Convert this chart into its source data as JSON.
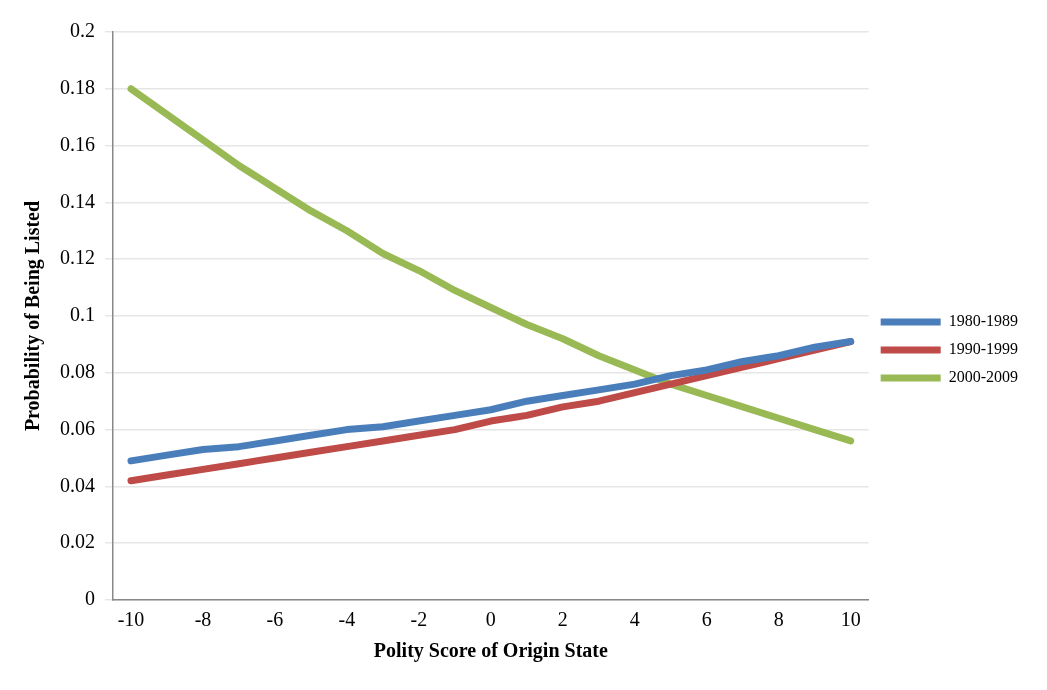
{
  "chart_data": {
    "type": "line",
    "xlabel": "Polity Score of Origin State",
    "ylabel": "Probability of Being Listed",
    "x": [
      -10,
      -9,
      -8,
      -7,
      -6,
      -5,
      -4,
      -3,
      -2,
      -1,
      0,
      1,
      2,
      3,
      4,
      5,
      6,
      7,
      8,
      9,
      10
    ],
    "xlim": [
      -10.5,
      10.5
    ],
    "xticks": [
      -10,
      -8,
      -6,
      -4,
      -2,
      0,
      2,
      4,
      6,
      8,
      10
    ],
    "ylim": [
      0,
      0.2
    ],
    "yticks": [
      0,
      0.02,
      0.04,
      0.06,
      0.08,
      0.1,
      0.12,
      0.14,
      0.16,
      0.18,
      0.2
    ],
    "grid": "y",
    "legend": "right",
    "marker": "none",
    "line_style": "solid",
    "series": [
      {
        "name": "1980-1989",
        "color": "#4a7ebb",
        "values": [
          0.049,
          0.051,
          0.053,
          0.054,
          0.056,
          0.058,
          0.06,
          0.061,
          0.063,
          0.065,
          0.067,
          0.07,
          0.072,
          0.074,
          0.076,
          0.079,
          0.081,
          0.084,
          0.086,
          0.089,
          0.091
        ]
      },
      {
        "name": "1990-1999",
        "color": "#be4b48",
        "values": [
          0.042,
          0.044,
          0.046,
          0.048,
          0.05,
          0.052,
          0.054,
          0.056,
          0.058,
          0.06,
          0.063,
          0.065,
          0.068,
          0.07,
          0.073,
          0.076,
          0.079,
          0.082,
          0.085,
          0.088,
          0.091
        ]
      },
      {
        "name": "2000-2009",
        "color": "#98b954",
        "values": [
          0.18,
          0.171,
          0.162,
          0.153,
          0.145,
          0.137,
          0.13,
          0.122,
          0.116,
          0.109,
          0.103,
          0.097,
          0.092,
          0.086,
          0.081,
          0.076,
          0.072,
          0.068,
          0.064,
          0.06,
          0.056
        ]
      }
    ]
  }
}
